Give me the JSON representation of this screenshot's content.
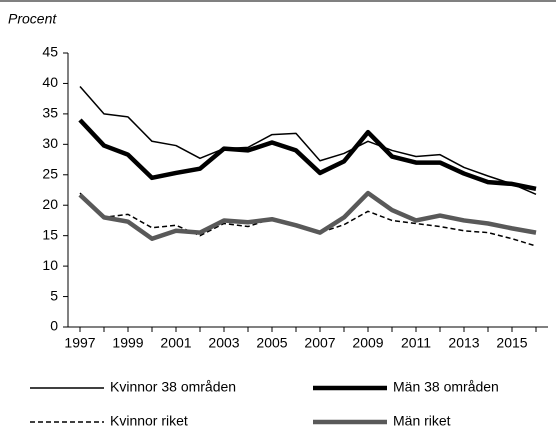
{
  "chart_data": {
    "type": "line",
    "y_label": "Procent",
    "x": [
      1997,
      1998,
      1999,
      2000,
      2001,
      2002,
      2003,
      2004,
      2005,
      2006,
      2007,
      2008,
      2009,
      2010,
      2011,
      2012,
      2013,
      2014,
      2015,
      2016
    ],
    "xlim": [
      1996.5,
      2016.5
    ],
    "xticks": [
      1997,
      1999,
      2001,
      2003,
      2005,
      2007,
      2009,
      2011,
      2013,
      2015
    ],
    "ylim": [
      0,
      45
    ],
    "yticks": [
      0,
      5,
      10,
      15,
      20,
      25,
      30,
      35,
      40,
      45
    ],
    "series": [
      {
        "name": "Kvinnor 38 områden",
        "color": "#000000",
        "width": 1.5,
        "dash": "none",
        "values": [
          39.5,
          35,
          34.5,
          30.5,
          29.8,
          27.7,
          29.3,
          29.5,
          31.6,
          31.8,
          27.3,
          28.5,
          30.5,
          29,
          28,
          28.3,
          26.2,
          24.8,
          23.5,
          21.8
        ]
      },
      {
        "name": "Män 38 områden",
        "color": "#000000",
        "width": 4.5,
        "dash": "none",
        "values": [
          34,
          29.8,
          28.3,
          24.5,
          25.3,
          26,
          29.3,
          29,
          30.3,
          29,
          25.3,
          27.2,
          32,
          28,
          27,
          27,
          25.2,
          23.8,
          23.5,
          22.7
        ]
      },
      {
        "name": "Kvinnor riket",
        "color": "#000000",
        "width": 1.5,
        "dash": "5 3",
        "values": [
          22,
          18,
          18.5,
          16.3,
          16.7,
          15,
          17,
          16.5,
          17.8,
          16.5,
          15.5,
          16.8,
          19,
          17.5,
          17,
          16.5,
          15.8,
          15.5,
          14.5,
          13.3
        ]
      },
      {
        "name": "Män riket",
        "color": "#595959",
        "width": 4.5,
        "dash": "none",
        "values": [
          21.7,
          18,
          17.3,
          14.5,
          15.8,
          15.5,
          17.5,
          17.2,
          17.7,
          16.7,
          15.5,
          18,
          22,
          19.2,
          17.5,
          18.3,
          17.5,
          17,
          16.2,
          15.5
        ]
      }
    ]
  }
}
